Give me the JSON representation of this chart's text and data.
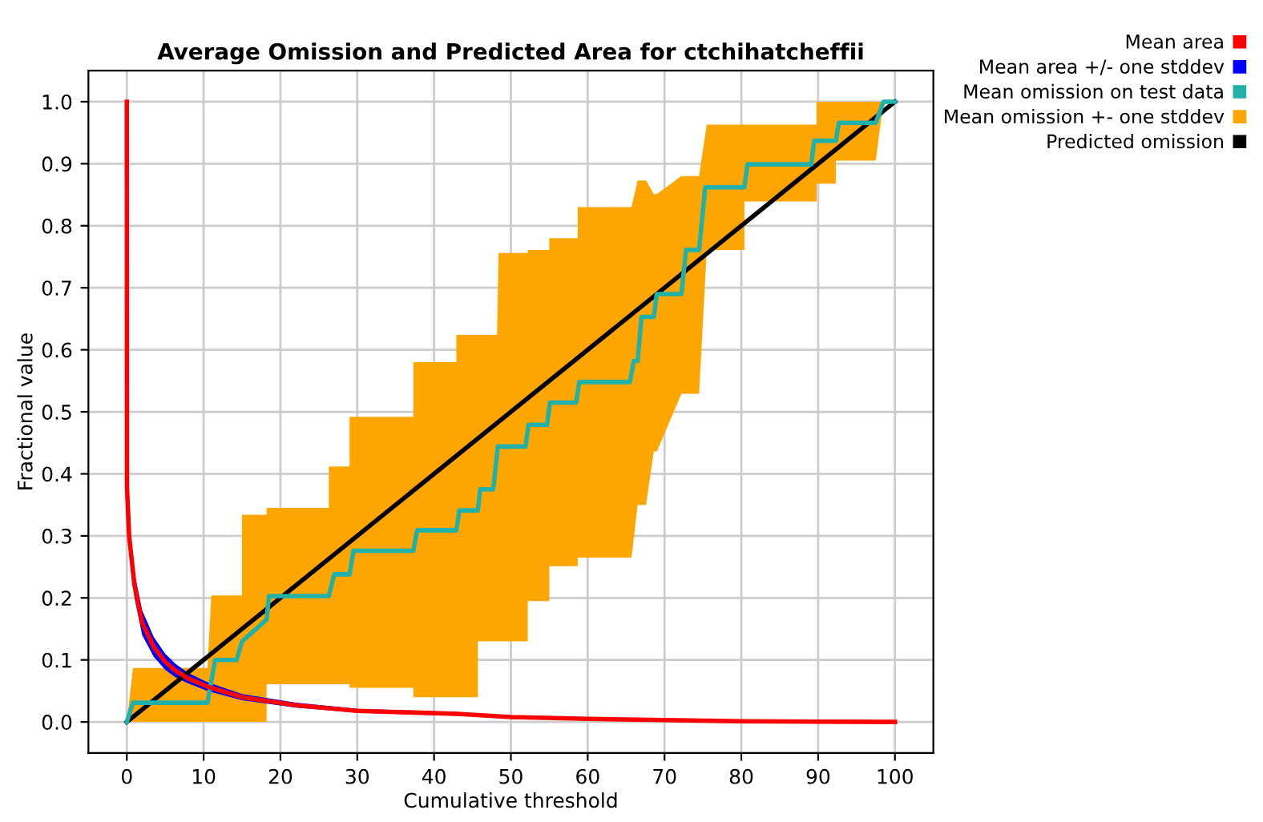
{
  "chart_data": {
    "type": "line",
    "title": "Average Omission and Predicted Area for ctchihatcheffii",
    "xlabel": "Cumulative threshold",
    "ylabel": "Fractional value",
    "xlim": [
      -5,
      105
    ],
    "ylim": [
      -0.05,
      1.05
    ],
    "xticks": [
      0,
      10,
      20,
      30,
      40,
      50,
      60,
      70,
      80,
      90,
      100
    ],
    "yticks": [
      {
        "value": 0,
        "label": "0.0"
      },
      {
        "value": 0.1,
        "label": "0.1"
      },
      {
        "value": 0.2,
        "label": "0.2"
      },
      {
        "value": 0.3,
        "label": "0.3"
      },
      {
        "value": 0.4,
        "label": "0.4"
      },
      {
        "value": 0.5,
        "label": "0.5"
      },
      {
        "value": 0.6,
        "label": "0.6"
      },
      {
        "value": 0.7,
        "label": "0.7"
      },
      {
        "value": 0.8,
        "label": "0.8"
      },
      {
        "value": 0.9,
        "label": "0.9"
      },
      {
        "value": 1,
        "label": "1.0"
      }
    ],
    "grid": true,
    "legend": "top right",
    "marker": "none",
    "line_style": "solid",
    "series": [
      {
        "name": "Mean area",
        "color": "#ff0000",
        "x": [
          0,
          0.02,
          0.3,
          1,
          2,
          3.5,
          5,
          6.3,
          8,
          10.5,
          15,
          22,
          30,
          43,
          50,
          60,
          70,
          80,
          100
        ],
        "values": [
          1.0,
          0.38,
          0.3,
          0.22,
          0.16,
          0.121,
          0.097,
          0.083,
          0.07,
          0.057,
          0.04,
          0.027,
          0.018,
          0.013,
          0.008,
          0.005,
          0.003,
          0.001,
          0
        ]
      },
      {
        "name": "Mean area +/- one stddev",
        "color": "#0000ff",
        "type": "area",
        "x": [
          0.02,
          0.3,
          1,
          2,
          3.5,
          5,
          6.3,
          8,
          10.5,
          15,
          22,
          30,
          43,
          50,
          60,
          70,
          80,
          100
        ],
        "values": [
          null,
          null,
          null,
          null,
          null,
          null,
          null,
          null,
          null,
          null,
          null,
          null,
          null,
          null,
          null,
          null,
          null,
          null
        ],
        "lower": [
          0.36,
          0.28,
          0.2,
          0.14,
          0.105,
          0.084,
          0.072,
          0.062,
          0.05,
          0.035,
          0.023,
          0.015,
          0.01,
          0.006,
          0.004,
          0.002,
          0,
          0
        ],
        "upper": [
          0.37,
          0.32,
          0.24,
          0.18,
          0.137,
          0.11,
          0.094,
          0.079,
          0.064,
          0.045,
          0.031,
          0.021,
          0.016,
          0.01,
          0.007,
          0.004,
          0.002,
          0
        ]
      },
      {
        "name": "Mean omission on test data",
        "color": "#20b2aa",
        "x": [
          0,
          0.8,
          10.5,
          11.5,
          14.3,
          15,
          18.2,
          18.5,
          26.3,
          27,
          29,
          29.5,
          37.3,
          37.8,
          42.9,
          43.3,
          45.7,
          46,
          47.7,
          48.3,
          51.9,
          52.3,
          54.7,
          55.1,
          58.5,
          58.9,
          65.5,
          66,
          66.5,
          67,
          68.6,
          69,
          72.2,
          72.8,
          74.5,
          75.3,
          80.4,
          80.8,
          89.1,
          89.5,
          92.3,
          92.7,
          97.5,
          98.5,
          100
        ],
        "values": [
          0,
          0.031,
          0.031,
          0.1,
          0.1,
          0.13,
          0.165,
          0.203,
          0.203,
          0.238,
          0.238,
          0.276,
          0.276,
          0.309,
          0.309,
          0.341,
          0.341,
          0.375,
          0.375,
          0.444,
          0.444,
          0.479,
          0.479,
          0.515,
          0.515,
          0.548,
          0.548,
          0.582,
          0.582,
          0.653,
          0.653,
          0.69,
          0.69,
          0.761,
          0.761,
          0.862,
          0.862,
          0.899,
          0.899,
          0.937,
          0.937,
          0.966,
          0.966,
          1.0,
          1.0
        ]
      },
      {
        "name": "Mean omission +- one stddev",
        "color": "#ffa500",
        "type": "area",
        "x": [
          0,
          0.8,
          10.5,
          11,
          15,
          15,
          18.2,
          18.2,
          26.3,
          26.3,
          29,
          29,
          37.3,
          37.3,
          42.9,
          42.9,
          45.7,
          45.7,
          48.2,
          48.4,
          52.2,
          52.2,
          55,
          55,
          58.7,
          58.7,
          65.7,
          66.5,
          67.6,
          68.6,
          69,
          72.2,
          74.5,
          75.5,
          80.4,
          80.4,
          89.8,
          89.8,
          92.3,
          92.3,
          97.5,
          98.5,
          100
        ],
        "values": [
          null,
          null,
          null,
          null,
          null,
          null,
          null,
          null,
          null,
          null,
          null,
          null,
          null,
          null,
          null,
          null,
          null,
          null,
          null,
          null,
          null,
          null,
          null,
          null,
          null,
          null,
          null,
          null,
          null,
          null,
          null,
          null,
          null,
          null,
          null,
          null,
          null,
          null,
          null,
          null,
          null,
          null,
          null
        ],
        "lower": [
          0,
          0,
          0,
          0,
          0,
          0,
          0,
          0.061,
          0.061,
          0.061,
          0.061,
          0.055,
          0.055,
          0.04,
          0.04,
          0.04,
          0.04,
          0.13,
          0.13,
          0.13,
          0.13,
          0.195,
          0.195,
          0.251,
          0.251,
          0.265,
          0.265,
          0.35,
          0.35,
          0.436,
          0.436,
          0.529,
          0.529,
          0.761,
          0.761,
          0.839,
          0.839,
          0.868,
          0.868,
          0.905,
          0.905,
          1.0,
          1.0
        ],
        "upper": [
          0,
          0.087,
          0.087,
          0.204,
          0.204,
          0.334,
          0.334,
          0.345,
          0.345,
          0.412,
          0.412,
          0.492,
          0.492,
          0.58,
          0.58,
          0.624,
          0.624,
          0.624,
          0.624,
          0.756,
          0.756,
          0.761,
          0.761,
          0.78,
          0.78,
          0.83,
          0.83,
          0.873,
          0.873,
          0.851,
          0.851,
          0.88,
          0.88,
          0.963,
          0.963,
          0.963,
          0.963,
          1.0,
          1.0,
          1.0,
          1.0,
          1.0,
          1.0
        ]
      },
      {
        "name": "Predicted omission",
        "color": "#000000",
        "x": [
          0,
          100
        ],
        "values": [
          0,
          1
        ]
      }
    ]
  }
}
